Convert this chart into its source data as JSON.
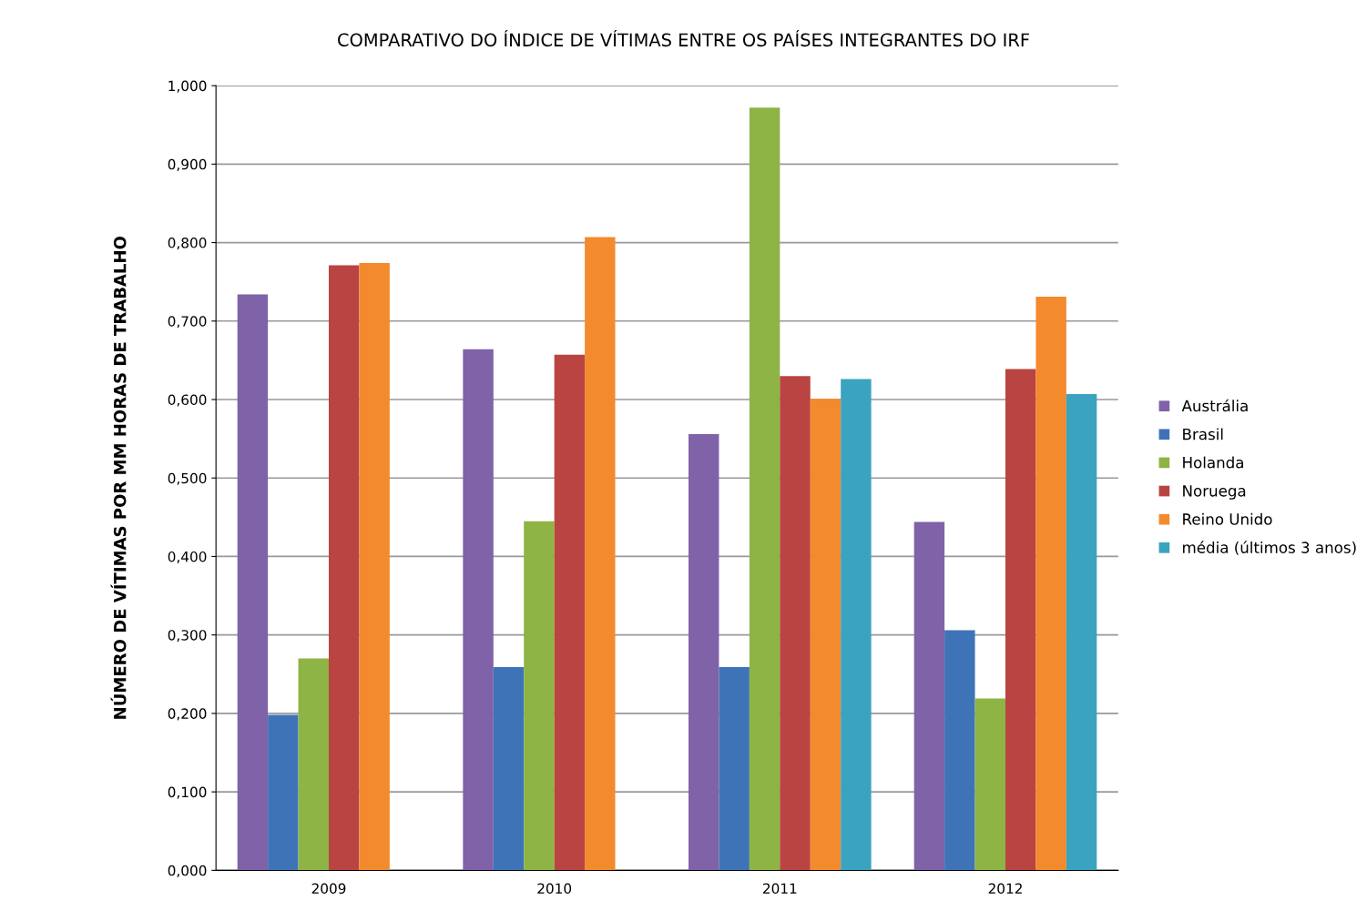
{
  "chart_data": {
    "type": "bar",
    "title": "COMPARATIVO DO ÍNDICE DE VÍTIMAS ENTRE OS PAÍSES INTEGRANTES DO IRF",
    "ylabel": "NÚMERO DE VÍTIMAS POR MM HORAS DE TRABALHO",
    "categories": [
      "2009",
      "2010",
      "2011",
      "2012"
    ],
    "series": [
      {
        "name": "Austrália",
        "color": "#7f62a8",
        "values": [
          0.734,
          0.664,
          0.556,
          0.444
        ]
      },
      {
        "name": "Brasil",
        "color": "#3f73b7",
        "values": [
          0.198,
          0.259,
          0.259,
          0.306
        ]
      },
      {
        "name": "Holanda",
        "color": "#8db444",
        "values": [
          0.27,
          0.445,
          0.972,
          0.219
        ]
      },
      {
        "name": "Noruega",
        "color": "#b94441",
        "values": [
          0.771,
          0.657,
          0.63,
          0.639
        ]
      },
      {
        "name": "Reino Unido",
        "color": "#f38a2e",
        "values": [
          0.774,
          0.807,
          0.601,
          0.731
        ]
      },
      {
        "name": "média (últimos 3 anos)",
        "color": "#3aa3bf",
        "values": [
          null,
          null,
          0.626,
          0.607
        ]
      }
    ],
    "ylim": [
      0,
      1
    ],
    "yticks": [
      {
        "value": 0,
        "label": "0,000"
      },
      {
        "value": 0.1,
        "label": "0,100"
      },
      {
        "value": 0.2,
        "label": "0,200"
      },
      {
        "value": 0.3,
        "label": "0,300"
      },
      {
        "value": 0.4,
        "label": "0,400"
      },
      {
        "value": 0.5,
        "label": "0,500"
      },
      {
        "value": 0.6,
        "label": "0,600"
      },
      {
        "value": 0.7,
        "label": "0,700"
      },
      {
        "value": 0.8,
        "label": "0,800"
      },
      {
        "value": 0.9,
        "label": "0,900"
      },
      {
        "value": 1,
        "label": "1,000"
      }
    ],
    "grid": "y",
    "legend": "right"
  }
}
